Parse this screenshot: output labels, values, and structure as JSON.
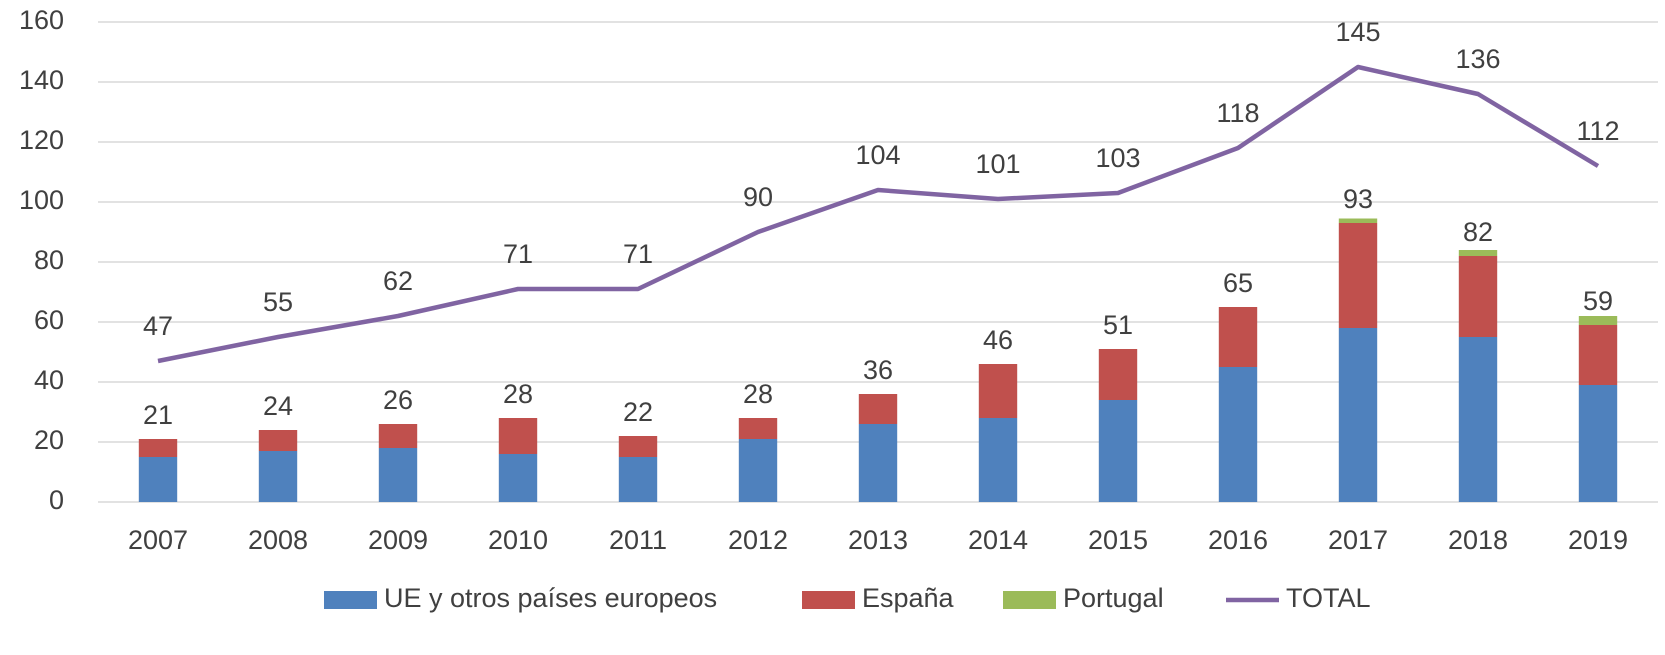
{
  "chart_data": {
    "type": "stacked_bar_line",
    "categories": [
      "2007",
      "2008",
      "2009",
      "2010",
      "2011",
      "2012",
      "2013",
      "2014",
      "2015",
      "2016",
      "2017",
      "2018",
      "2019"
    ],
    "series": [
      {
        "name": "UE y otros países europeos",
        "color": "#4f81bd",
        "values": [
          15,
          17,
          18,
          16,
          15,
          21,
          26,
          28,
          34,
          45,
          58,
          55,
          39
        ]
      },
      {
        "name": "España",
        "color": "#c0504d",
        "values": [
          6,
          7,
          8,
          12,
          7,
          7,
          10,
          18,
          17,
          20,
          35,
          27,
          20
        ]
      },
      {
        "name": "Portugal",
        "color": "#9bbb59",
        "values": [
          0,
          0,
          0,
          0,
          0,
          0,
          0,
          0,
          0,
          0,
          1.5,
          2,
          3
        ]
      },
      {
        "name": "TOTAL",
        "color": "#8064a2",
        "type": "line",
        "values": [
          47,
          55,
          62,
          71,
          71,
          90,
          104,
          101,
          103,
          118,
          145,
          136,
          112
        ]
      }
    ],
    "stack_labels": [
      21,
      24,
      26,
      28,
      22,
      28,
      36,
      46,
      51,
      65,
      93,
      82,
      59
    ],
    "ylim": [
      0,
      160
    ],
    "yticks": [
      0,
      20,
      40,
      60,
      80,
      100,
      120,
      140,
      160
    ],
    "grid": true,
    "legend": "bottom"
  }
}
